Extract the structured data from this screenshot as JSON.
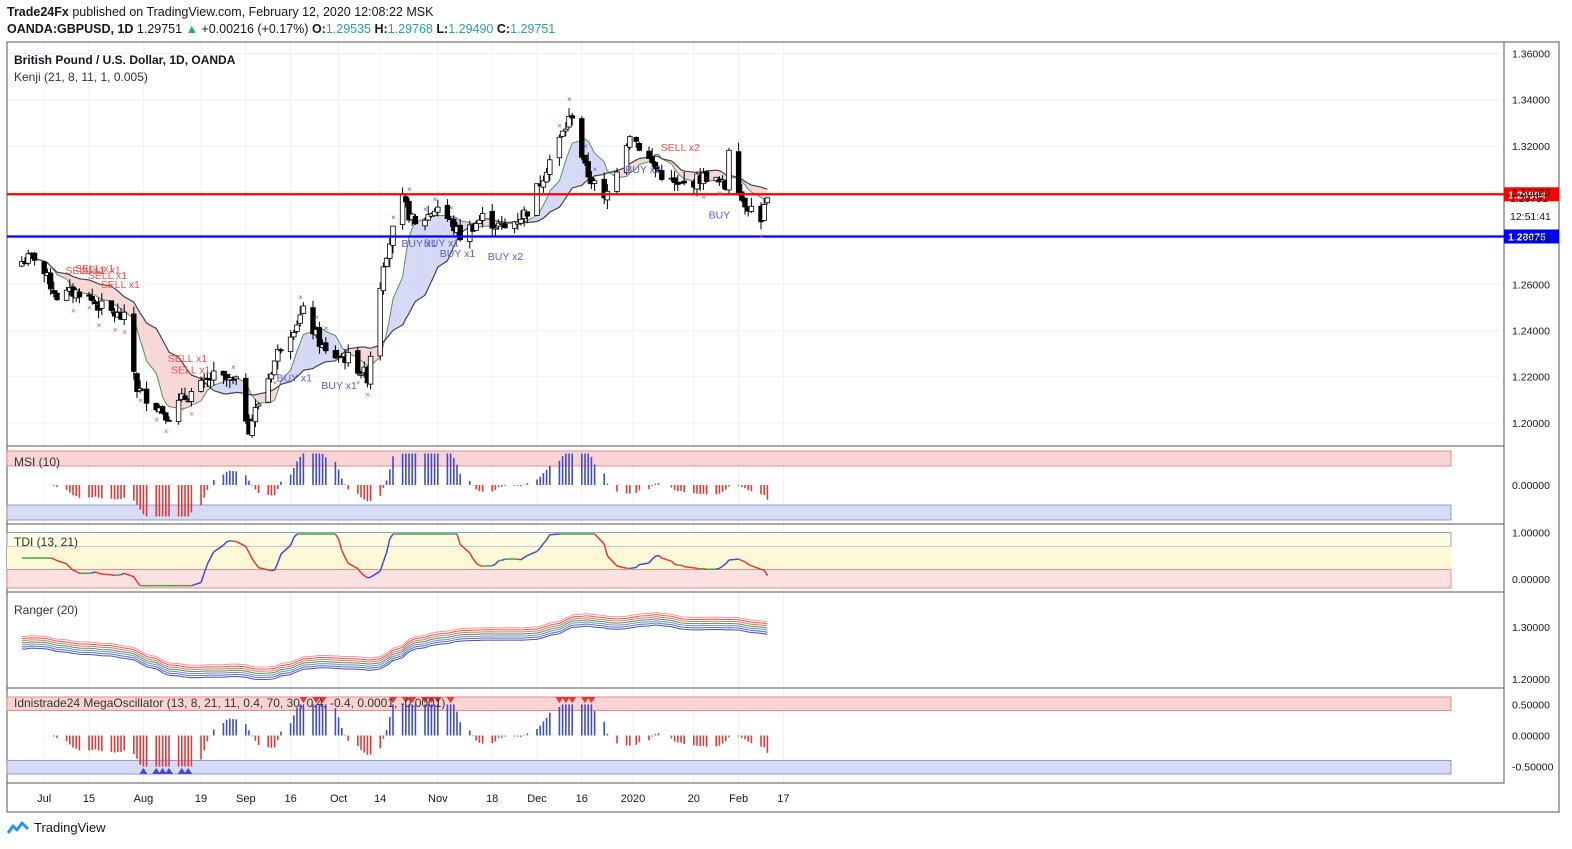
{
  "header": {
    "publisher": "Trade24Fx",
    "published_text": "published on TradingView.com, February 12, 2020 12:08:22 MSK",
    "symbol": "OANDA:GBPUSD, 1D",
    "last": "1.29751",
    "change": "+0.00216 (+0.17%)",
    "o_label": "O:",
    "o": "1.29535",
    "h_label": "H:",
    "h": "1.29768",
    "l_label": "L:",
    "l": "1.29490",
    "c_label": "C:",
    "c": "1.29751"
  },
  "footer": {
    "brand": "TradingView"
  },
  "colors": {
    "bull": "#26a69a",
    "bear": "#000000",
    "red_line": "#ff0000",
    "blue_line": "#0000ff",
    "sell": "#ef5350",
    "buy": "#5b5bd6"
  },
  "chart_data": [
    {
      "type": "candlestick",
      "title": "British Pound / U.S. Dollar, 1D, OANDA",
      "indicator": "Kenji (21, 8, 11, 1, 0.005)",
      "ylim": [
        1.19,
        1.365
      ],
      "y_ticks": [
        "1.36000",
        "1.34000",
        "1.32000",
        "1.30000",
        "1.28000",
        "1.26000",
        "1.24000",
        "1.22000",
        "1.20000"
      ],
      "x_ticks": [
        "Jul",
        "15",
        "Aug",
        "19",
        "Sep",
        "16",
        "Oct",
        "14",
        "Nov",
        "18",
        "Dec",
        "16",
        "2020",
        "20",
        "Feb",
        "17"
      ],
      "horizontal_lines": [
        {
          "label": "1.29904",
          "value": 1.29904,
          "color": "#ff0000"
        },
        {
          "label": "1.28075",
          "value": 1.28075,
          "color": "#0000ff"
        }
      ],
      "price_label": "1.29751",
      "time_label": "12:51:41",
      "anchors": [
        [
          "2019-06-24",
          1.27
        ],
        [
          "2019-06-28",
          1.272
        ],
        [
          "2019-07-05",
          1.255
        ],
        [
          "2019-07-12",
          1.257
        ],
        [
          "2019-07-19",
          1.25
        ],
        [
          "2019-07-26",
          1.245
        ],
        [
          "2019-07-30",
          1.215
        ],
        [
          "2019-08-09",
          1.203
        ],
        [
          "2019-08-13",
          1.21
        ],
        [
          "2019-08-23",
          1.22
        ],
        [
          "2019-08-30",
          1.217
        ],
        [
          "2019-09-03",
          1.198
        ],
        [
          "2019-09-13",
          1.234
        ],
        [
          "2019-09-20",
          1.248
        ],
        [
          "2019-09-27",
          1.23
        ],
        [
          "2019-10-04",
          1.228
        ],
        [
          "2019-10-10",
          1.22
        ],
        [
          "2019-10-15",
          1.27
        ],
        [
          "2019-10-21",
          1.296
        ],
        [
          "2019-10-25",
          1.285
        ],
        [
          "2019-11-01",
          1.294
        ],
        [
          "2019-11-08",
          1.281
        ],
        [
          "2019-11-15",
          1.289
        ],
        [
          "2019-11-22",
          1.284
        ],
        [
          "2019-11-29",
          1.292
        ],
        [
          "2019-12-06",
          1.314
        ],
        [
          "2019-12-13",
          1.334
        ],
        [
          "2019-12-17",
          1.31
        ],
        [
          "2019-12-23",
          1.296
        ],
        [
          "2019-12-31",
          1.326
        ],
        [
          "2020-01-08",
          1.31
        ],
        [
          "2020-01-15",
          1.302
        ],
        [
          "2020-01-24",
          1.307
        ],
        [
          "2020-01-30",
          1.302
        ],
        [
          "2020-01-31",
          1.32
        ],
        [
          "2020-02-04",
          1.297
        ],
        [
          "2020-02-10",
          1.289
        ],
        [
          "2020-02-12",
          1.297
        ]
      ],
      "annotations": {
        "sell": [
          {
            "date": "2019-07-12",
            "text": "SELL x1"
          },
          {
            "date": "2019-07-15",
            "text": "SELL x1"
          },
          {
            "date": "2019-07-17",
            "text": "SELL x1"
          },
          {
            "date": "2019-07-19",
            "text": "SELL x1"
          },
          {
            "date": "2019-07-23",
            "text": "SELL x1"
          },
          {
            "date": "2019-08-13",
            "text": "SELL x1"
          },
          {
            "date": "2019-08-14",
            "text": "SELL x1"
          },
          {
            "date": "2020-01-14",
            "text": "SELL x2"
          }
        ],
        "buy": [
          {
            "date": "2019-09-16",
            "text": "BUY x1"
          },
          {
            "date": "2019-09-30",
            "text": "BUY x1"
          },
          {
            "date": "2019-10-25",
            "text": "BUY x1"
          },
          {
            "date": "2019-11-01",
            "text": "BUY x1"
          },
          {
            "date": "2019-11-06",
            "text": "BUY x1"
          },
          {
            "date": "2019-11-21",
            "text": "BUY x2"
          },
          {
            "date": "2020-01-03",
            "text": "BUY x2"
          },
          {
            "date": "2020-01-29",
            "text": "BUY"
          }
        ]
      }
    },
    {
      "type": "bar",
      "title": "MSI (10)",
      "ylim": [
        -0.1,
        0.1
      ],
      "y_ticks": [
        "0.00000"
      ]
    },
    {
      "type": "line",
      "title": "TDI (13, 21)",
      "ylim": [
        -0.2,
        1.1
      ],
      "y_ticks": [
        "1.00000",
        "0.00000"
      ]
    },
    {
      "type": "line",
      "title": "Ranger (20)",
      "ylim": [
        1.19,
        1.36
      ],
      "y_ticks": [
        "1.30000",
        "1.20000"
      ]
    },
    {
      "type": "bar",
      "title": "Idnistrade24 MegaOscillator (13, 8, 21, 11, 0.4, 70, 30, 0.4, -0.4, 0.0001, -0.0001)",
      "ylim": [
        -0.7,
        0.7
      ],
      "y_ticks": [
        "0.50000",
        "0.00000",
        "-0.50000"
      ]
    }
  ]
}
